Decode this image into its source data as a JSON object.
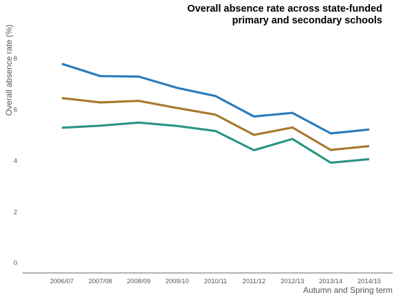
{
  "chart_data": {
    "type": "line",
    "title_lines": [
      "Overall absence rate across state-funded",
      "primary and secondary schools"
    ],
    "xlabel": "Autumn and Spring term",
    "ylabel": "Overall absence rate (%)",
    "categories": [
      "2006/07",
      "2007/08",
      "2008/09",
      "2009/10",
      "2010/11",
      "2011/12",
      "2012/13",
      "2013/14",
      "2014/15"
    ],
    "yticks": [
      "0",
      "2",
      "4",
      "6",
      "8"
    ],
    "ylim": [
      -0.4,
      9.2
    ],
    "grid": false,
    "legend": "none",
    "series": [
      {
        "color": "#2b7bba",
        "values": [
          7.78,
          7.3,
          7.28,
          6.84,
          6.52,
          5.72,
          5.86,
          5.06,
          5.21
        ]
      },
      {
        "color": "#a8792e",
        "values": [
          6.44,
          6.27,
          6.33,
          6.05,
          5.79,
          5.0,
          5.29,
          4.41,
          4.56
        ]
      },
      {
        "color": "#2b9484",
        "values": [
          5.28,
          5.36,
          5.48,
          5.35,
          5.15,
          4.4,
          4.84,
          3.91,
          4.05
        ]
      }
    ]
  }
}
